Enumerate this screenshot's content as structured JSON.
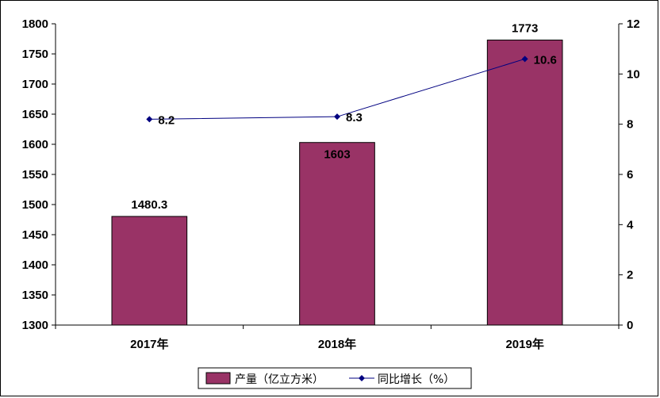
{
  "chart_data": {
    "type": "bar+line",
    "categories": [
      "2017年",
      "2018年",
      "2019年"
    ],
    "series": [
      {
        "name": "产量（亿立方米）",
        "type": "bar",
        "axis": "left",
        "values": [
          1480.3,
          1603,
          1773
        ],
        "labels": [
          "1480.3",
          "1603",
          "1773"
        ],
        "color": "#993366"
      },
      {
        "name": "同比增长（%）",
        "type": "line",
        "axis": "right",
        "values": [
          8.2,
          8.3,
          10.6
        ],
        "labels": [
          "8.2",
          "8.3",
          "10.6"
        ],
        "color": "#000080"
      }
    ],
    "y_left": {
      "min": 1300,
      "max": 1800,
      "step": 50
    },
    "y_right": {
      "min": 0,
      "max": 12,
      "step": 2
    },
    "grid": false,
    "legend_position": "bottom"
  }
}
